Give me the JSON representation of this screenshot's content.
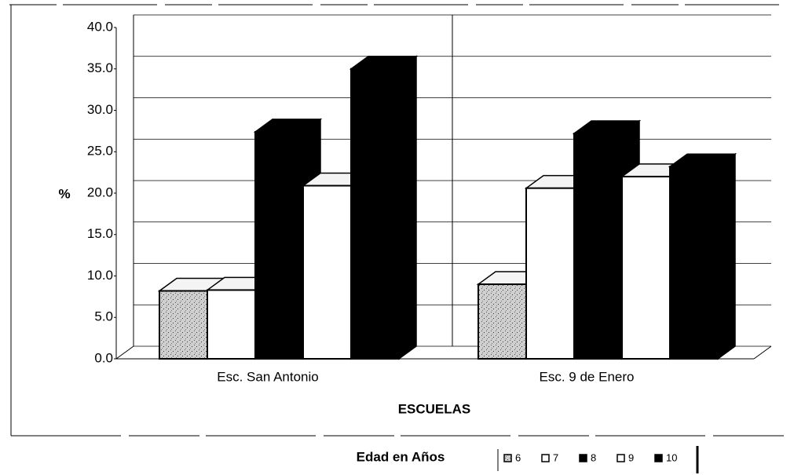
{
  "chart_data": {
    "type": "bar3d",
    "categories": [
      "Esc. San Antonio",
      "Esc. 9 de Enero"
    ],
    "series": [
      {
        "name": "6",
        "color": "#b8b8b8",
        "values": [
          8.2,
          9.0
        ]
      },
      {
        "name": "7",
        "color": "#ffffff",
        "values": [
          8.3,
          20.6
        ]
      },
      {
        "name": "8",
        "color": "#000000",
        "values": [
          27.4,
          27.2
        ]
      },
      {
        "name": "9",
        "color": "#ffffff",
        "values": [
          20.9,
          22.0
        ]
      },
      {
        "name": "10",
        "color": "#000000",
        "values": [
          35.0,
          23.2
        ]
      }
    ],
    "y_label": "%",
    "x_label": "ESCUELAS",
    "legend_title": "Edad en Años",
    "ylim": [
      0,
      40
    ],
    "yticks": [
      {
        "value": 0,
        "label": "0.0"
      },
      {
        "value": 5,
        "label": "5.0"
      },
      {
        "value": 10,
        "label": "10.0"
      },
      {
        "value": 15,
        "label": "15.0"
      },
      {
        "value": 20,
        "label": "20.0"
      },
      {
        "value": 25,
        "label": "25.0"
      },
      {
        "value": 30,
        "label": "30.0"
      },
      {
        "value": 35,
        "label": "35.0"
      },
      {
        "value": 40,
        "label": "40.0"
      }
    ],
    "grid": true,
    "legend": "bottom-right"
  }
}
